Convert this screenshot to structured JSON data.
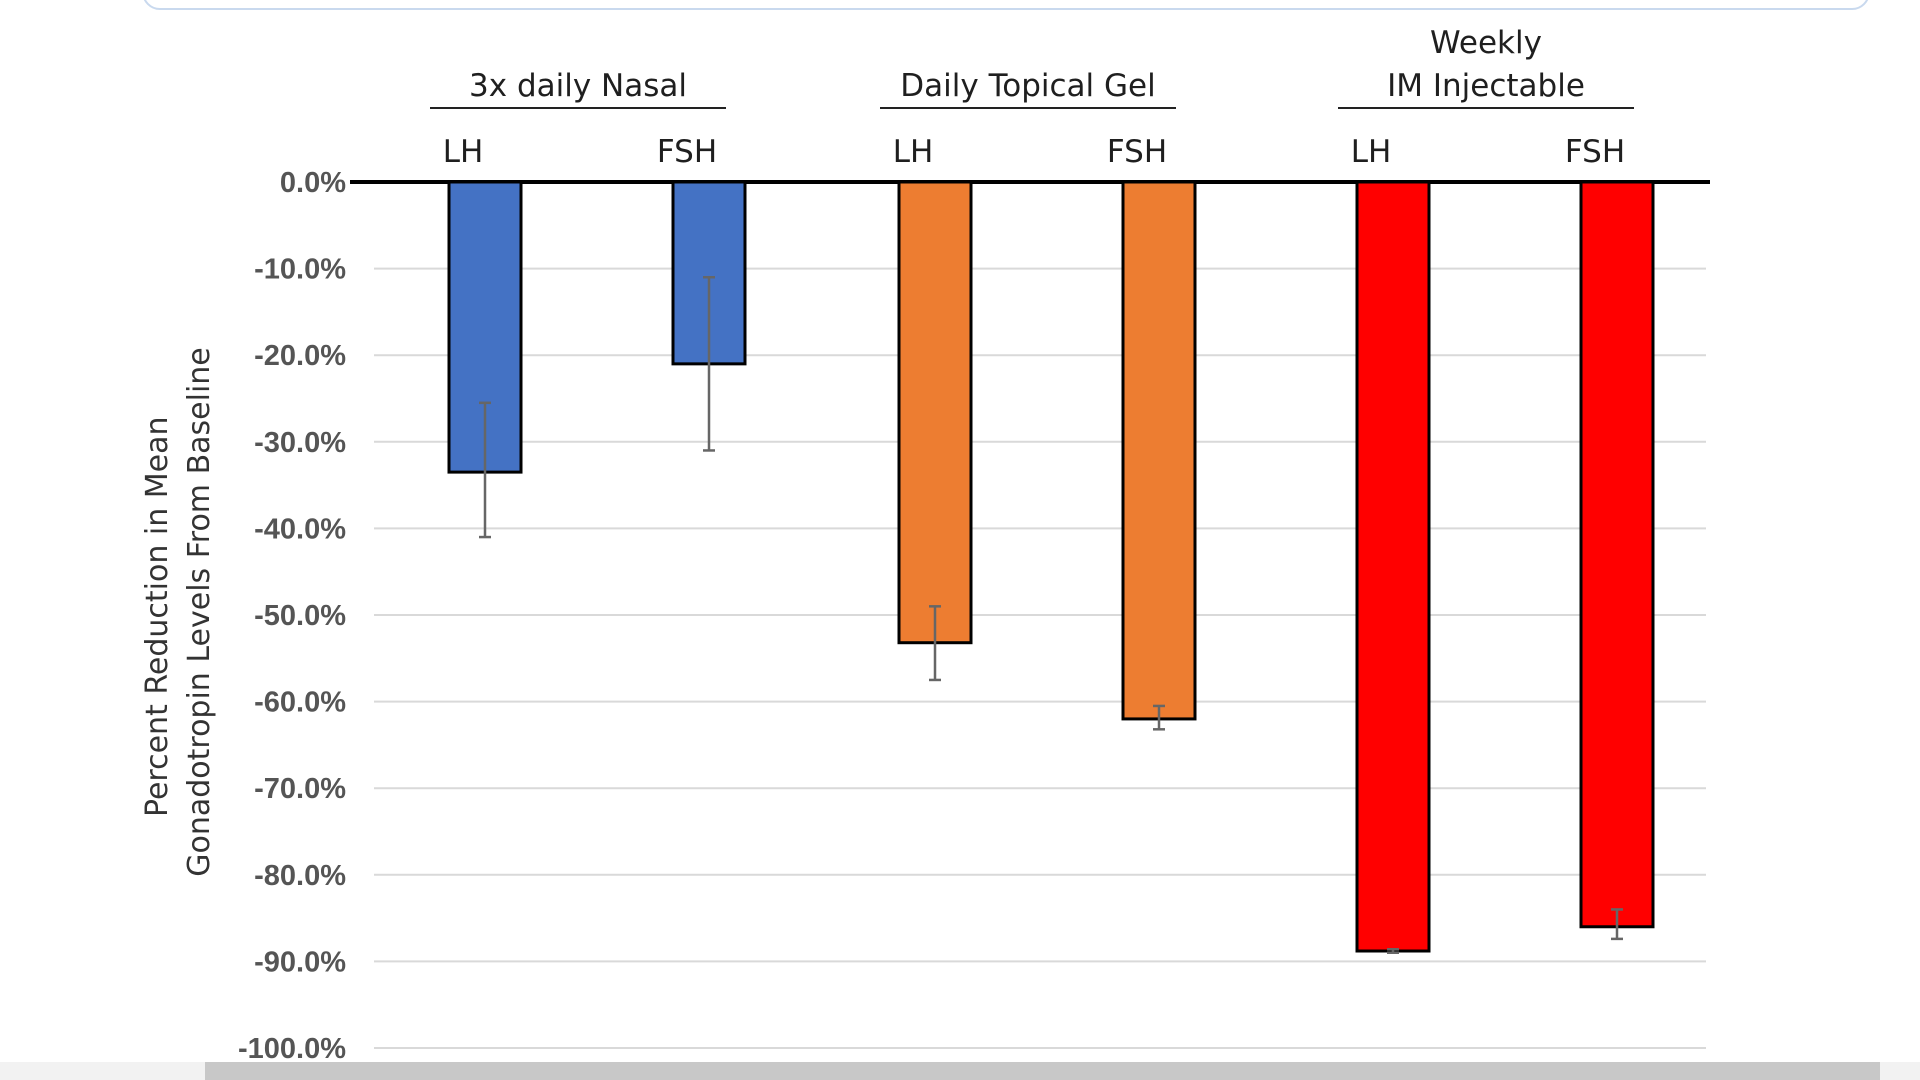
{
  "chart_data": {
    "type": "bar",
    "groups": [
      {
        "label_lines": [
          "3x daily Nasal"
        ],
        "color": "#4472C4",
        "bars": [
          {
            "category": "LH",
            "value": -33.5,
            "err_low": -41.0,
            "err_high": -25.5
          },
          {
            "category": "FSH",
            "value": -21.0,
            "err_low": -31.0,
            "err_high": -11.0
          }
        ]
      },
      {
        "label_lines": [
          "Daily Topical Gel"
        ],
        "color": "#ED7D31",
        "bars": [
          {
            "category": "LH",
            "value": -53.2,
            "err_low": -57.5,
            "err_high": -49.0
          },
          {
            "category": "FSH",
            "value": -62.0,
            "err_low": -63.2,
            "err_high": -60.5
          }
        ]
      },
      {
        "label_lines": [
          "Weekly",
          "IM Injectable"
        ],
        "color": "#FF0000",
        "bars": [
          {
            "category": "LH",
            "value": -88.8,
            "err_low": -89.0,
            "err_high": -88.6
          },
          {
            "category": "FSH",
            "value": -86.0,
            "err_low": -87.4,
            "err_high": -84.0
          }
        ]
      }
    ],
    "ylabel_lines": [
      "Percent Reduction in Mean",
      "Gonadotropin Levels From Baseline"
    ],
    "yticks": [
      "0.0%",
      "-10.0%",
      "-20.0%",
      "-30.0%",
      "-40.0%",
      "-50.0%",
      "-60.0%",
      "-70.0%",
      "-80.0%",
      "-90.0%",
      "-100.0%"
    ],
    "ylim": [
      -100,
      0
    ],
    "grid": true,
    "legend": "none"
  }
}
